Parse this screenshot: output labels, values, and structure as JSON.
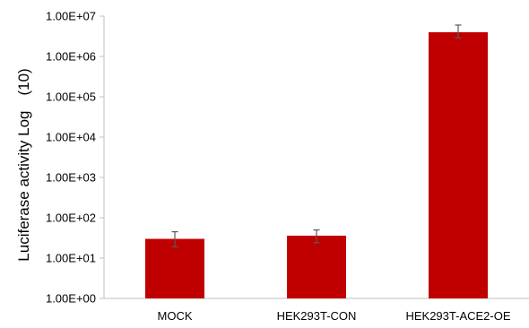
{
  "chart_data": {
    "type": "bar",
    "title": "",
    "xlabel": "",
    "ylabel": "Luciferase activity Log　(10)",
    "y_scale": "log10",
    "ylim": [
      1,
      10000000
    ],
    "y_tick_labels": [
      "1.00E+00",
      "1.00E+01",
      "1.00E+02",
      "1.00E+03",
      "1.00E+04",
      "1.00E+05",
      "1.00E+06",
      "1.00E+07"
    ],
    "categories": [
      "MOCK",
      "HEK293T-CON",
      "HEK293T-ACE2-OE"
    ],
    "series": [
      {
        "values": [
          30,
          36,
          4000000
        ],
        "error_low": [
          19,
          24,
          2900000
        ],
        "error_high": [
          45,
          50,
          6000000
        ]
      }
    ],
    "bar_color": "#c00000",
    "error_bar_color": "#595959",
    "grid": false,
    "legend": "none"
  }
}
